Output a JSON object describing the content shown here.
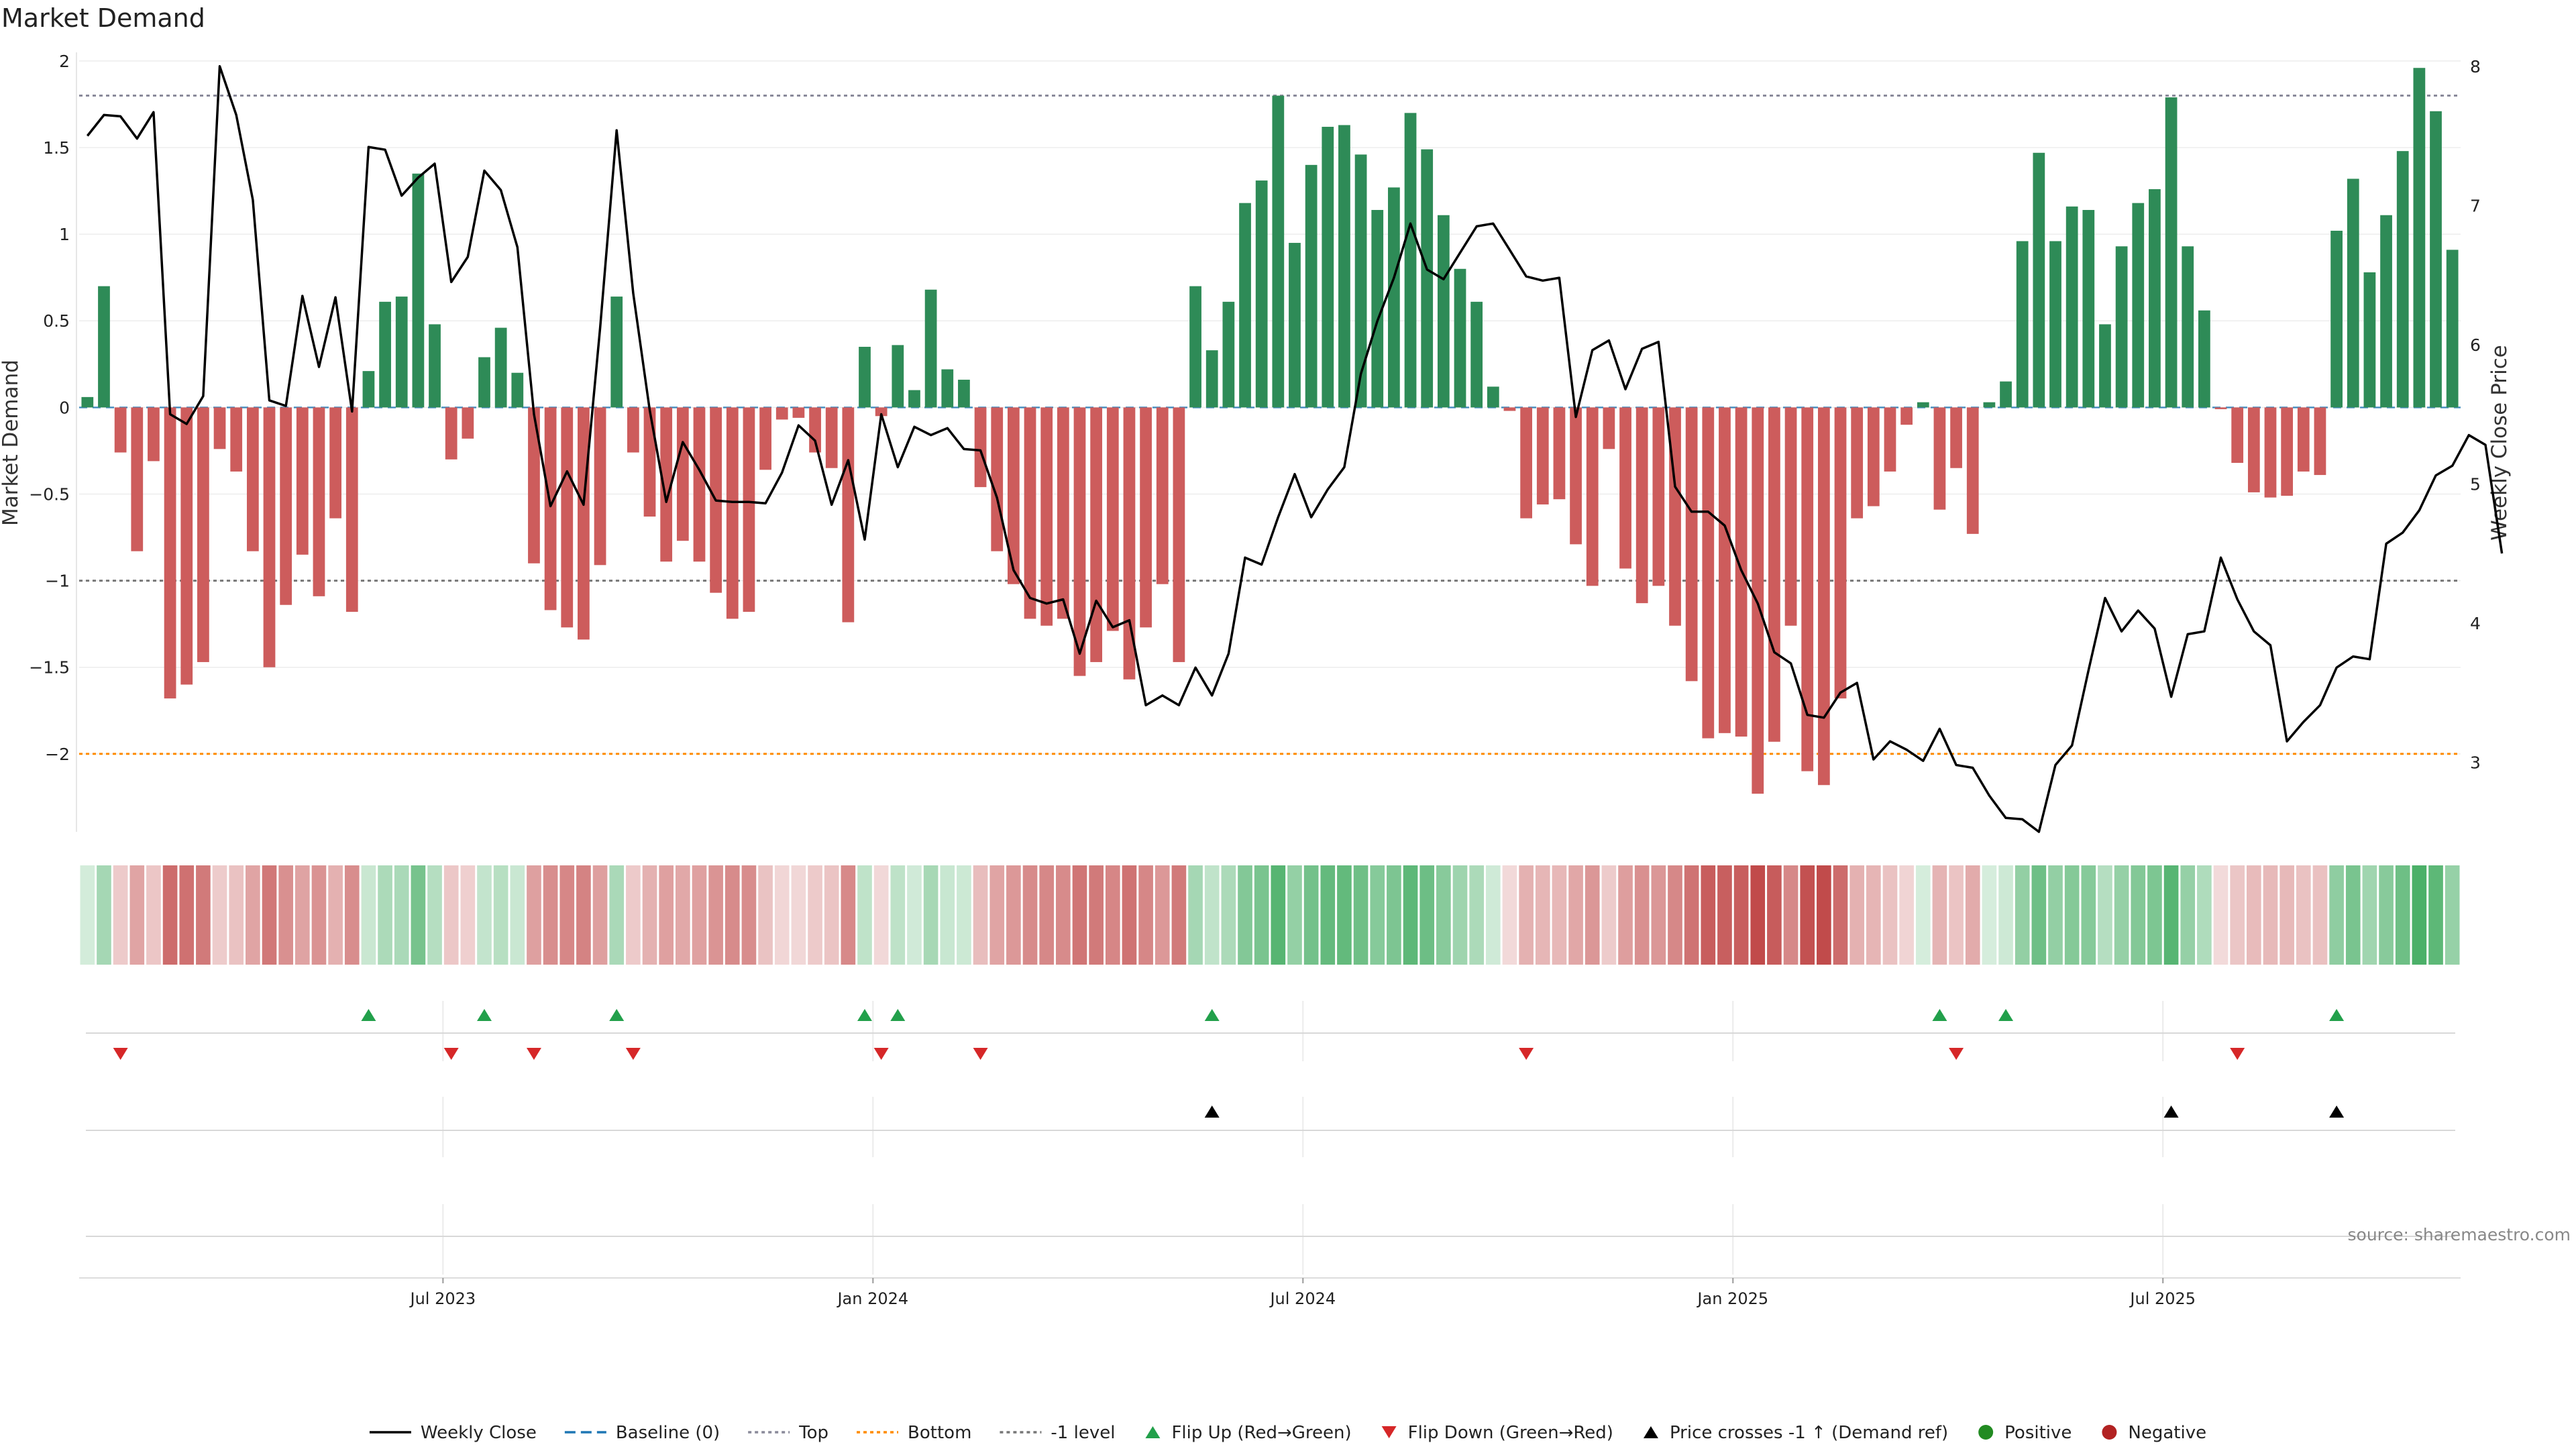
{
  "title": "Market Demand",
  "source": "source: sharemaestro.com",
  "colors": {
    "positive": "#2e8b57",
    "negative": "#cd5c5c",
    "price": "#000000",
    "top": "#8a8a9a",
    "bottom": "#ff8c00",
    "minus1": "#777777",
    "baseline": "#1f77b4",
    "flip_up": "#22a04b",
    "flip_down": "#d62728",
    "legend_positive": "#228b22",
    "legend_negative": "#b22222"
  },
  "chart_data": {
    "type": "bar",
    "y_left_label": "Market Demand",
    "y_right_label": "Weekly Close Price",
    "y_left_range": [
      -2.45,
      2.05
    ],
    "y_right_range": [
      2.5,
      8.1
    ],
    "y_left_ticks": [
      "2",
      "1.5",
      "1",
      "0.5",
      "0",
      "−0.5",
      "−1",
      "−1.5",
      "−2"
    ],
    "y_left_tick_values": [
      2,
      1.5,
      1,
      0.5,
      0,
      -0.5,
      -1,
      -1.5,
      -2
    ],
    "y_right_ticks": [
      "8",
      "7",
      "6",
      "5",
      "4",
      "3"
    ],
    "y_right_tick_values": [
      8,
      7,
      6,
      5,
      4,
      3
    ],
    "x_ticks": [
      "Jul 2023",
      "Jan 2024",
      "Jul 2024",
      "Jan 2025",
      "Jul 2025"
    ],
    "x_tick_week_index": [
      22,
      48,
      74,
      100,
      126
    ],
    "reference_lines": {
      "top": 1.8,
      "bottom": -2.0,
      "minus1": -1.0,
      "baseline": 0
    },
    "demand": [
      0.06,
      0.7,
      -0.26,
      -0.83,
      -0.31,
      -1.68,
      -1.6,
      -1.47,
      -0.24,
      -0.37,
      -0.83,
      -1.5,
      -1.14,
      -0.85,
      -1.09,
      -0.64,
      -1.18,
      0.21,
      0.61,
      0.64,
      1.35,
      0.48,
      -0.3,
      -0.18,
      0.29,
      0.46,
      0.2,
      -0.9,
      -1.17,
      -1.27,
      -1.34,
      -0.91,
      0.64,
      -0.26,
      -0.63,
      -0.89,
      -0.77,
      -0.89,
      -1.07,
      -1.22,
      -1.18,
      -0.36,
      -0.07,
      -0.06,
      -0.26,
      -0.35,
      -1.24,
      0.35,
      -0.05,
      0.36,
      0.1,
      0.68,
      0.22,
      0.16,
      -0.46,
      -0.83,
      -1.02,
      -1.22,
      -1.26,
      -1.22,
      -1.55,
      -1.47,
      -1.29,
      -1.57,
      -1.27,
      -1.02,
      -1.47,
      0.7,
      0.33,
      0.61,
      1.18,
      1.31,
      1.8,
      0.95,
      1.4,
      1.62,
      1.63,
      1.46,
      1.14,
      1.27,
      1.7,
      1.49,
      1.11,
      0.8,
      0.61,
      0.12,
      -0.02,
      -0.64,
      -0.56,
      -0.53,
      -0.79,
      -1.03,
      -0.24,
      -0.93,
      -1.13,
      -1.03,
      -1.26,
      -1.58,
      -1.91,
      -1.88,
      -1.9,
      -2.23,
      -1.93,
      -1.26,
      -2.1,
      -2.18,
      -1.68,
      -0.64,
      -0.57,
      -0.37,
      -0.1,
      0.03,
      -0.59,
      -0.35,
      -0.73,
      0.03,
      0.15,
      0.96,
      1.47,
      0.96,
      1.16,
      1.14,
      0.48,
      0.93,
      1.18,
      1.26,
      1.79,
      0.93,
      0.56,
      -0.01,
      -0.32,
      -0.49,
      -0.52,
      -0.51,
      -0.37,
      -0.39,
      1.02,
      1.32,
      0.78,
      1.11,
      1.48,
      1.96,
      1.71,
      0.91
    ],
    "close": [
      7.5,
      7.65,
      7.64,
      7.48,
      7.67,
      5.5,
      5.43,
      5.63,
      8.0,
      7.65,
      7.04,
      5.6,
      5.56,
      6.35,
      5.84,
      6.34,
      5.52,
      7.42,
      7.4,
      7.07,
      7.2,
      7.3,
      6.45,
      6.63,
      7.25,
      7.11,
      6.7,
      5.5,
      4.84,
      5.09,
      4.85,
      6.12,
      7.54,
      6.37,
      5.53,
      4.87,
      5.3,
      5.1,
      4.88,
      4.87,
      4.87,
      4.86,
      5.08,
      5.42,
      5.31,
      4.85,
      5.17,
      4.6,
      5.5,
      5.12,
      5.41,
      5.35,
      5.4,
      5.25,
      5.24,
      4.9,
      4.38,
      4.18,
      4.14,
      4.17,
      3.78,
      4.16,
      3.97,
      4.02,
      3.41,
      3.48,
      3.41,
      3.68,
      3.48,
      3.78,
      4.47,
      4.42,
      4.76,
      5.07,
      4.76,
      4.96,
      5.12,
      5.79,
      6.17,
      6.48,
      6.87,
      6.54,
      6.47,
      6.66,
      6.85,
      6.87,
      6.68,
      6.49,
      6.46,
      6.48,
      5.48,
      5.96,
      6.03,
      5.68,
      5.97,
      6.02,
      4.98,
      4.8,
      4.8,
      4.7,
      4.38,
      4.14,
      3.79,
      3.71,
      3.34,
      3.32,
      3.5,
      3.57,
      3.02,
      3.15,
      3.09,
      3.01,
      3.24,
      2.98,
      2.96,
      2.76,
      2.6,
      2.59,
      2.5,
      2.98,
      3.12,
      3.66,
      4.18,
      3.94,
      4.09,
      3.96,
      3.47,
      3.92,
      3.94,
      4.47,
      4.17,
      3.94,
      3.84,
      3.15,
      3.29,
      3.41,
      3.68,
      3.76,
      3.74,
      4.57,
      4.65,
      4.81,
      5.06,
      5.13,
      5.35,
      5.28,
      4.5
    ],
    "flip_up_weeks": [
      17,
      24,
      32,
      47,
      49,
      68,
      112,
      116,
      136
    ],
    "flip_down_weeks": [
      2,
      22,
      27,
      33,
      48,
      54,
      87,
      113,
      130
    ],
    "price_cross_weeks": [
      68,
      126,
      136
    ],
    "legend": [
      {
        "label": "Weekly Close",
        "kind": "solid",
        "color": "#000000"
      },
      {
        "label": "Baseline (0)",
        "kind": "dash",
        "color": "#1f77b4"
      },
      {
        "label": "Top",
        "kind": "dot",
        "color": "#8a8a9a"
      },
      {
        "label": "Bottom",
        "kind": "dot",
        "color": "#ff8c00"
      },
      {
        "label": "-1 level",
        "kind": "dot",
        "color": "#777777"
      },
      {
        "label": "Flip Up (Red→Green)",
        "kind": "tri-up",
        "color": "#22a04b"
      },
      {
        "label": "Flip Down (Green→Red)",
        "kind": "tri-down",
        "color": "#d62728"
      },
      {
        "label": "Price crosses -1 ↑ (Demand ref)",
        "kind": "tri-up",
        "color": "#000000"
      },
      {
        "label": "Positive",
        "kind": "circle",
        "color": "#228b22"
      },
      {
        "label": "Negative",
        "kind": "circle",
        "color": "#b22222"
      }
    ]
  }
}
